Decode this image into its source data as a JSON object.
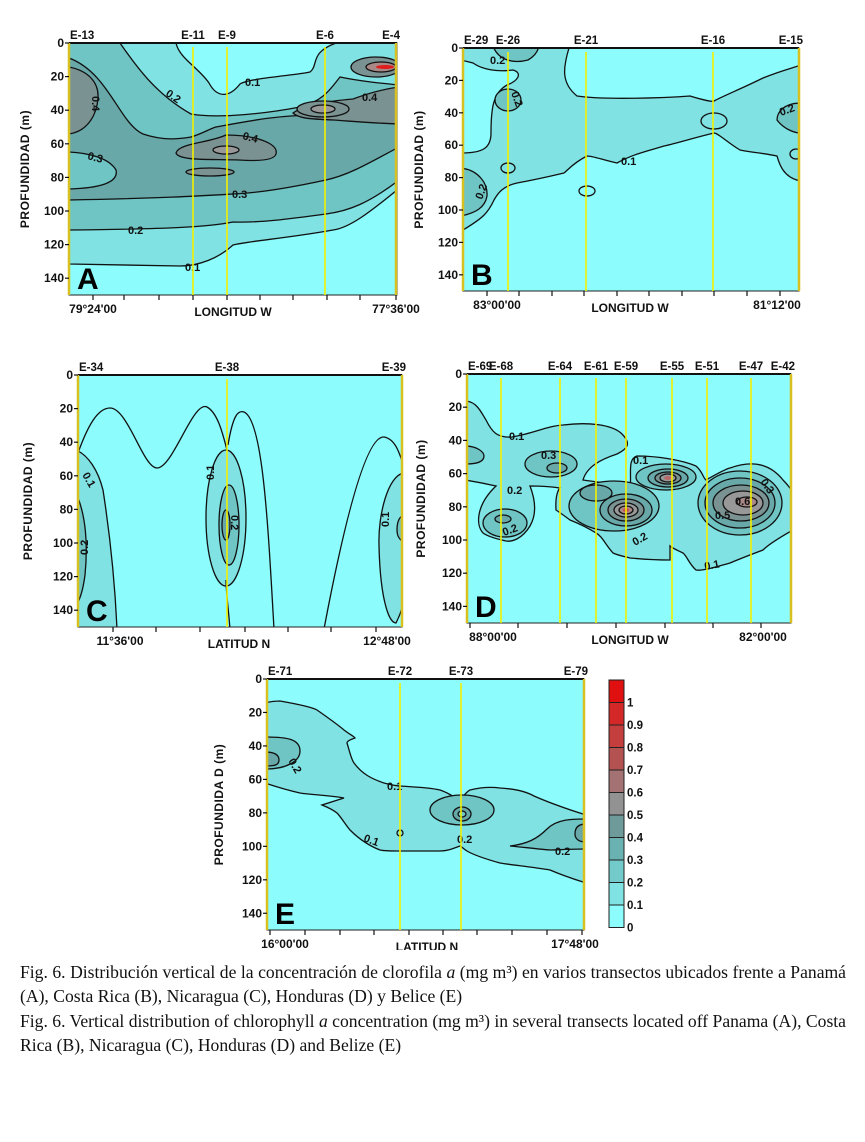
{
  "depth_ticks": [
    "0",
    "20",
    "40",
    "60",
    "80",
    "100",
    "120",
    "140"
  ],
  "panels": [
    {
      "letter": "A",
      "ylabel": "PROFUNDIDAD (m)",
      "xlabel": "LONGITUD W",
      "x_ticks": [
        "79°24'00",
        "77°36'00"
      ],
      "stations": [
        "E-13",
        "E-11",
        "E-9",
        "E-6",
        "E-4"
      ],
      "contour_labels": [
        "0.1",
        "0.2",
        "0.4",
        "0.4",
        "0.4",
        "0.3",
        "0.3",
        "0.2",
        "0.1"
      ]
    },
    {
      "letter": "B",
      "ylabel": "PROFUNDIDAD (m)",
      "xlabel": "LONGITUD W",
      "x_ticks": [
        "83°00'00",
        "81°12'00"
      ],
      "stations": [
        "E-29",
        "E-26",
        "E-21",
        "E-16",
        "E-15"
      ],
      "contour_labels": [
        "0.2",
        "0.2",
        "0.1",
        "0.2",
        "0.2"
      ]
    },
    {
      "letter": "C",
      "ylabel": "PROFUNDIDAD (m)",
      "xlabel": "LATITUD N",
      "x_ticks": [
        "11°36'00",
        "12°48'00"
      ],
      "stations": [
        "E-34",
        "E-38",
        "E-39"
      ],
      "contour_labels": [
        "0.1",
        "0.2",
        "0.1",
        "0.2",
        "0.1"
      ]
    },
    {
      "letter": "D",
      "ylabel": "PROFUNDIDAD (m)",
      "xlabel": "LONGITUD W",
      "x_ticks": [
        "88°00'00",
        "82°00'00"
      ],
      "stations": [
        "E-69",
        "E-68",
        "E-64",
        "E-61",
        "E-59",
        "E-55",
        "E-51",
        "E-47",
        "E-42"
      ],
      "contour_labels": [
        "0.1",
        "0.3",
        "0.2",
        "0.2",
        "0.1",
        "0.2",
        "0.6",
        "0.5",
        "0.3",
        "0.1"
      ]
    },
    {
      "letter": "E",
      "ylabel": "PROFUNDIDA D (m)",
      "xlabel": "LATITUD N",
      "x_ticks": [
        "16°00'00",
        "17°48'00"
      ],
      "stations": [
        "E-71",
        "E-72",
        "E-73",
        "E-79"
      ],
      "contour_labels": [
        "0.2",
        "0.1",
        "0.1",
        "0.2",
        "0.2"
      ]
    }
  ],
  "colorbar": {
    "labels": [
      "1",
      "0.9",
      "0.8",
      "0.7",
      "0.6",
      "0.5",
      "0.4",
      "0.3",
      "0.2",
      "0.1",
      "0"
    ],
    "colors": [
      "#e01010",
      "#d42828",
      "#c43e3e",
      "#b45252",
      "#a47272",
      "#929292",
      "#6f9a9a",
      "#6ab2b2",
      "#72caca",
      "#80e2e2",
      "#8cfcfc"
    ]
  },
  "caption": {
    "es_before": "Fig. 6. Distribución vertical de la concentración de clorofila ",
    "es_italic": "a",
    "es_after": " (mg m³) en varios transectos ubicados frente a Panamá (A), Costa Rica (B), Nicaragua (C), Honduras (D) y Belice (E)",
    "en_before": "Fig. 6. Vertical distribution of chlorophyll ",
    "en_italic": "a",
    "en_after": " concentration (mg m³) in several transects located off Panama (A), Costa Rica (B), Nicaragua (C), Honduras (D) and Belize (E)"
  }
}
